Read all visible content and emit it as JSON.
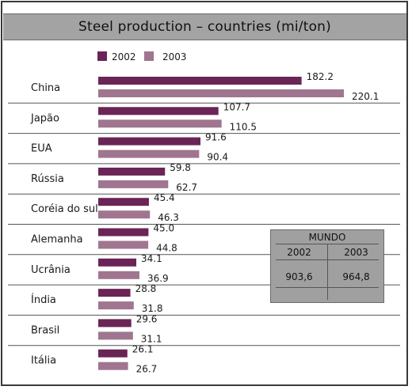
{
  "title": "Steel production – countries (mi/ton)",
  "colors": {
    "s2002": "#6b2456",
    "s2003": "#a0758f",
    "separator": "#555555"
  },
  "chart_data": {
    "type": "bar",
    "orientation": "horizontal",
    "title": "Steel production – countries (mi/ton)",
    "categories": [
      "China",
      "Japão",
      "EUA",
      "Rússia",
      "Coréia do sul",
      "Alemanha",
      "Ucrânia",
      "Índia",
      "Brasil",
      "Itália"
    ],
    "series": [
      {
        "name": "2002",
        "values": [
          182.2,
          107.7,
          91.6,
          59.8,
          45.4,
          45.0,
          34.1,
          28.8,
          29.6,
          26.1
        ],
        "labels": [
          "182.2",
          "107.7",
          "91.6",
          "59.8",
          "45.4",
          "45.0",
          "34.1",
          "28.8",
          "29.6",
          "26.1"
        ]
      },
      {
        "name": "2003",
        "values": [
          220.1,
          110.5,
          90.4,
          62.7,
          46.3,
          44.8,
          36.9,
          31.8,
          31.1,
          26.7
        ],
        "labels": [
          "220.1",
          "110.5",
          "90.4",
          "62.7",
          "46.3",
          "44.8",
          "36.9",
          "31.8",
          "31.1",
          "26.7"
        ]
      }
    ],
    "legend_position": "top-left",
    "grid": false
  },
  "mundo": {
    "title": "MUNDO",
    "col1_year": "2002",
    "col2_year": "2003",
    "col1_value": "903,6",
    "col2_value": "964,8"
  }
}
